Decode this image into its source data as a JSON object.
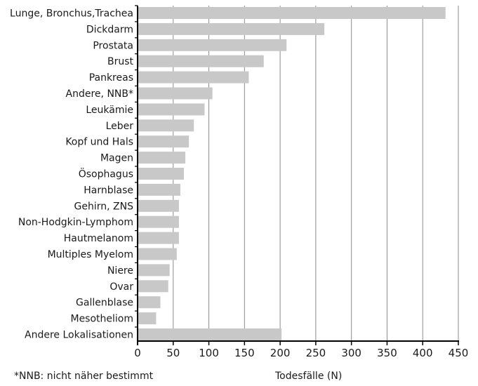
{
  "chart_data": {
    "type": "bar",
    "orientation": "horizontal",
    "categories": [
      "Lunge, Bronchus,Trachea",
      "Dickdarm",
      "Prostata",
      "Brust",
      "Pankreas",
      "Andere, NNB*",
      "Leukämie",
      "Leber",
      "Kopf und Hals",
      "Magen",
      "Ösophagus",
      "Harnblase",
      "Gehirn, ZNS",
      "Non-Hodgkin-Lymphom",
      "Hautmelanom",
      "Multiples Myelom",
      "Niere",
      "Ovar",
      "Gallenblase",
      "Mesotheliom",
      "Andere Lokalisationen"
    ],
    "values": [
      432,
      262,
      209,
      177,
      156,
      105,
      94,
      79,
      72,
      67,
      65,
      60,
      58,
      58,
      58,
      55,
      45,
      43,
      32,
      26,
      202
    ],
    "xlabel": "Todesfälle (N)",
    "xlim": [
      0,
      450
    ],
    "xticks": [
      0,
      50,
      100,
      150,
      200,
      250,
      300,
      350,
      400,
      450
    ],
    "grid": "vertical",
    "bar_color": "#c8c8c8",
    "grid_color": "#8c8c8c"
  },
  "footnote": "*NNB: nicht näher bestimmt"
}
